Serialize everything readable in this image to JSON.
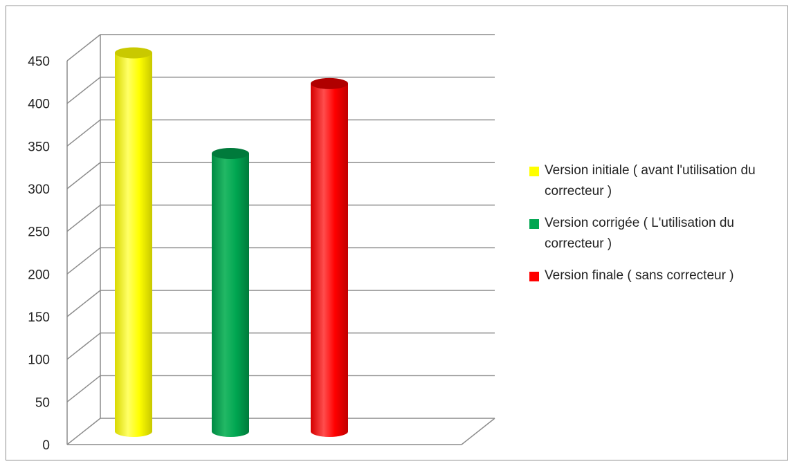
{
  "chart_data": {
    "type": "bar",
    "title": "",
    "xlabel": "",
    "ylabel": "",
    "categories": [],
    "series": [
      {
        "name": "Version initiale ( avant l'utilisation du correcteur )",
        "value": 448,
        "color": "#ffff00"
      },
      {
        "name": "Version corrigée ( L'utilisation du correcteur )",
        "value": 330,
        "color": "#00a651"
      },
      {
        "name": "Version finale ( sans correcteur )",
        "value": 412,
        "color": "#ff0000"
      }
    ],
    "yticks": [
      0,
      50,
      100,
      150,
      200,
      250,
      300,
      350,
      400,
      450
    ],
    "ylim": [
      0,
      450
    ],
    "grid": true,
    "legend": "right"
  }
}
